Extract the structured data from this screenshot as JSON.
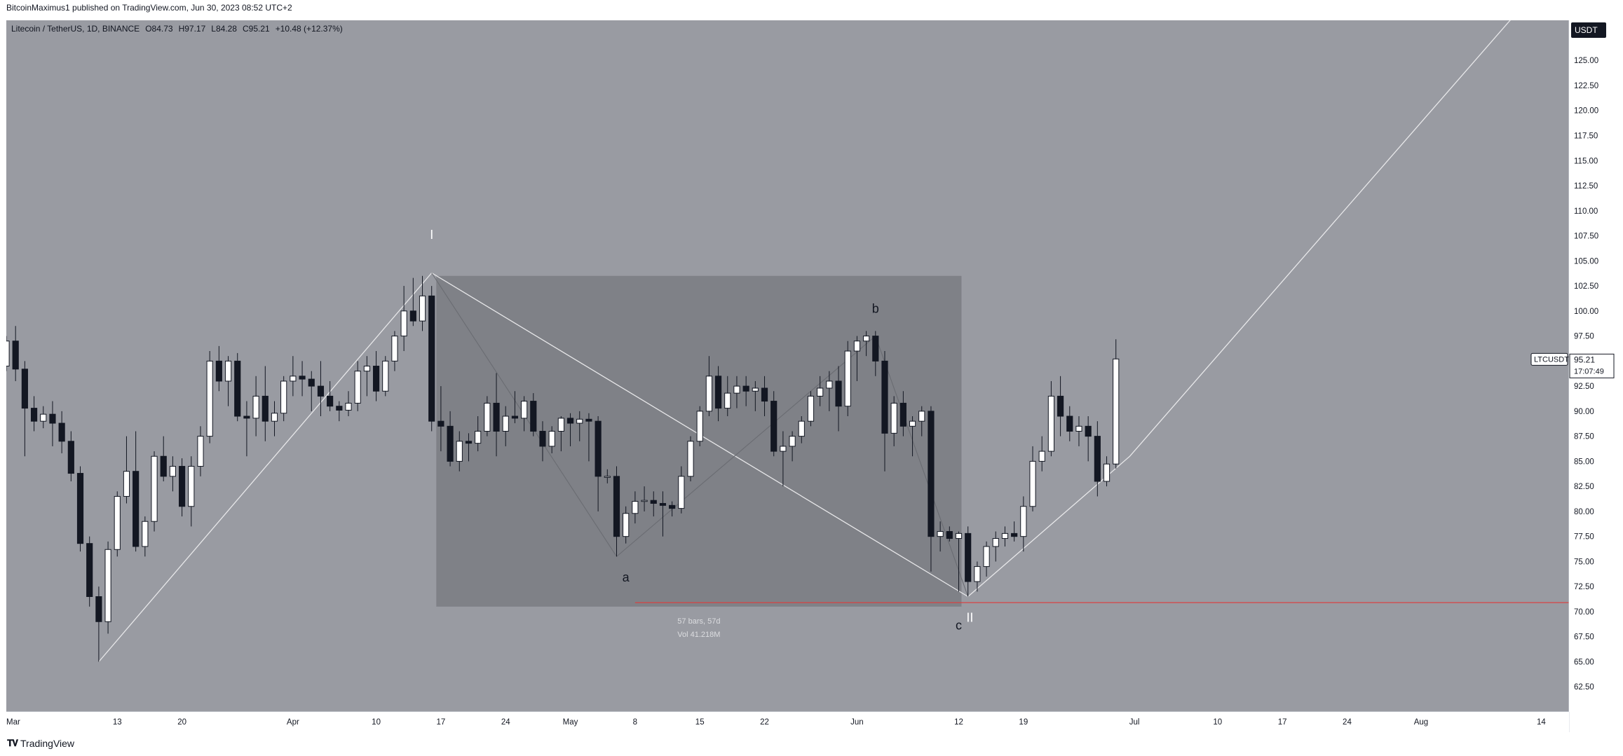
{
  "header": {
    "published_text": "BitcoinMaximus1 published on TradingView.com, Jun 30, 2023 08:52 UTC+2"
  },
  "footer": {
    "brand": "TradingView",
    "logo_icon": "tradingview-logo-icon"
  },
  "colors": {
    "background": "#999ba2",
    "rect_fill": "#7f8187",
    "bull_candle": "#ffffff",
    "bear_candle": "#131722",
    "support_line": "#e03a3a",
    "trend_line": "#e8e8ea"
  },
  "chart_data": {
    "type": "candlestick",
    "symbol_info": {
      "name": "Litecoin / TetherUS, 1D, BINANCE",
      "o_label": "O",
      "o": "84.73",
      "h_label": "H",
      "h": "97.17",
      "l_label": "L",
      "l": "84.28",
      "c_label": "C",
      "c": "95.21",
      "change": "+10.48 (+12.37%)"
    },
    "currency": "USDT",
    "price_badge": {
      "ticker": "LTCUSDT",
      "price": "95.21",
      "countdown": "17:07:49"
    },
    "ylim": [
      60.0,
      129.0
    ],
    "y_ticks": [
      "62.50",
      "65.00",
      "67.50",
      "70.00",
      "72.50",
      "75.00",
      "77.50",
      "80.00",
      "82.50",
      "85.00",
      "87.50",
      "90.00",
      "92.50",
      "95.00",
      "97.50",
      "100.00",
      "102.50",
      "105.00",
      "107.50",
      "110.00",
      "112.50",
      "115.00",
      "117.50",
      "120.00",
      "122.50",
      "125.00"
    ],
    "x_ticks": [
      {
        "label": "Mar",
        "day": 0
      },
      {
        "label": "13",
        "day": 12
      },
      {
        "label": "20",
        "day": 19
      },
      {
        "label": "Apr",
        "day": 31
      },
      {
        "label": "10",
        "day": 40
      },
      {
        "label": "17",
        "day": 47
      },
      {
        "label": "24",
        "day": 54
      },
      {
        "label": "May",
        "day": 61
      },
      {
        "label": "8",
        "day": 68
      },
      {
        "label": "15",
        "day": 75
      },
      {
        "label": "22",
        "day": 82
      },
      {
        "label": "Jun",
        "day": 92
      },
      {
        "label": "12",
        "day": 103
      },
      {
        "label": "19",
        "day": 110
      },
      {
        "label": "Jul",
        "day": 122
      },
      {
        "label": "10",
        "day": 131
      },
      {
        "label": "17",
        "day": 138
      },
      {
        "label": "24",
        "day": 145
      },
      {
        "label": "Aug",
        "day": 153
      },
      {
        "label": "14",
        "day": 166
      }
    ],
    "xlim_days": [
      0,
      169
    ],
    "candles": [
      [
        0,
        94.5,
        97.5,
        94.0,
        97.0
      ],
      [
        1,
        97.0,
        98.5,
        93.0,
        94.2
      ],
      [
        2,
        94.2,
        95.0,
        85.5,
        90.3
      ],
      [
        3,
        90.3,
        91.5,
        88.0,
        89.0
      ],
      [
        4,
        89.0,
        90.5,
        88.3,
        89.7
      ],
      [
        5,
        89.7,
        91.0,
        86.5,
        88.8
      ],
      [
        6,
        88.8,
        90.0,
        85.8,
        87.0
      ],
      [
        7,
        87.0,
        88.0,
        83.0,
        83.8
      ],
      [
        8,
        83.8,
        84.5,
        76.0,
        76.8
      ],
      [
        9,
        76.8,
        77.5,
        70.5,
        71.5
      ],
      [
        10,
        71.5,
        72.5,
        65.0,
        69.0
      ],
      [
        11,
        69.0,
        77.0,
        67.8,
        76.2
      ],
      [
        12,
        76.2,
        82.0,
        75.5,
        81.5
      ],
      [
        13,
        81.5,
        87.5,
        80.8,
        84.0
      ],
      [
        14,
        84.0,
        88.0,
        76.0,
        76.5
      ],
      [
        15,
        76.5,
        79.5,
        75.5,
        79.0
      ],
      [
        16,
        79.0,
        86.0,
        78.0,
        85.5
      ],
      [
        17,
        85.5,
        87.5,
        83.0,
        83.5
      ],
      [
        18,
        83.5,
        85.5,
        82.0,
        84.5
      ],
      [
        19,
        84.5,
        85.3,
        79.5,
        80.5
      ],
      [
        20,
        80.5,
        85.5,
        78.5,
        84.5
      ],
      [
        21,
        84.5,
        88.5,
        83.5,
        87.5
      ],
      [
        22,
        87.5,
        96.0,
        86.8,
        95.0
      ],
      [
        23,
        95.0,
        96.5,
        92.0,
        93.0
      ],
      [
        24,
        93.0,
        95.5,
        90.5,
        95.0
      ],
      [
        25,
        95.0,
        95.8,
        89.0,
        89.5
      ],
      [
        26,
        89.5,
        91.0,
        85.5,
        89.3
      ],
      [
        27,
        89.3,
        93.5,
        87.5,
        91.5
      ],
      [
        28,
        91.5,
        94.5,
        87.0,
        89.0
      ],
      [
        29,
        89.0,
        91.0,
        87.5,
        89.8
      ],
      [
        30,
        89.8,
        93.5,
        89.0,
        93.0
      ],
      [
        31,
        93.0,
        95.5,
        91.5,
        93.5
      ],
      [
        32,
        93.5,
        95.0,
        91.5,
        93.2
      ],
      [
        33,
        93.2,
        94.0,
        90.0,
        92.5
      ],
      [
        34,
        92.5,
        95.0,
        89.5,
        91.5
      ],
      [
        35,
        91.5,
        93.0,
        90.0,
        90.5
      ],
      [
        36,
        90.5,
        91.0,
        89.0,
        90.1
      ],
      [
        37,
        90.1,
        92.0,
        89.5,
        90.8
      ],
      [
        38,
        90.8,
        95.0,
        90.0,
        94.0
      ],
      [
        39,
        94.0,
        95.5,
        91.5,
        94.5
      ],
      [
        40,
        94.5,
        96.0,
        91.0,
        92.0
      ],
      [
        41,
        92.0,
        95.5,
        91.5,
        95.0
      ],
      [
        42,
        95.0,
        98.0,
        94.0,
        97.5
      ],
      [
        43,
        97.5,
        102.5,
        96.0,
        100.0
      ],
      [
        44,
        100.0,
        103.3,
        98.5,
        99.0
      ],
      [
        45,
        99.0,
        103.5,
        98.0,
        101.5
      ],
      [
        46,
        101.5,
        102.5,
        88.0,
        89.0
      ],
      [
        47,
        89.0,
        92.5,
        86.0,
        88.5
      ],
      [
        48,
        88.5,
        90.0,
        84.5,
        85.0
      ],
      [
        49,
        85.0,
        88.0,
        84.0,
        87.0
      ],
      [
        50,
        87.0,
        87.8,
        85.0,
        86.8
      ],
      [
        51,
        86.8,
        89.5,
        86.0,
        88.0
      ],
      [
        52,
        88.0,
        91.5,
        87.5,
        90.8
      ],
      [
        53,
        90.8,
        93.8,
        85.5,
        88.0
      ],
      [
        54,
        88.0,
        90.5,
        86.5,
        89.5
      ],
      [
        55,
        89.5,
        92.0,
        88.8,
        89.3
      ],
      [
        56,
        89.3,
        91.5,
        88.0,
        91.0
      ],
      [
        57,
        91.0,
        91.8,
        87.5,
        88.0
      ],
      [
        58,
        88.0,
        89.0,
        85.0,
        86.5
      ],
      [
        59,
        86.5,
        88.5,
        85.8,
        88.0
      ],
      [
        60,
        88.0,
        89.5,
        86.0,
        89.3
      ],
      [
        61,
        89.3,
        89.8,
        86.5,
        88.8
      ],
      [
        62,
        88.8,
        90.0,
        87.0,
        89.2
      ],
      [
        63,
        89.2,
        89.8,
        85.0,
        89.0
      ],
      [
        64,
        89.0,
        89.5,
        80.0,
        83.5
      ],
      [
        65,
        83.5,
        84.2,
        82.8,
        83.5
      ],
      [
        66,
        83.5,
        84.5,
        75.5,
        77.5
      ],
      [
        67,
        77.5,
        80.5,
        76.8,
        79.8
      ],
      [
        68,
        79.8,
        82.0,
        78.8,
        81.0
      ],
      [
        69,
        81.0,
        82.5,
        80.0,
        81.1
      ],
      [
        70,
        81.1,
        82.0,
        79.5,
        80.8
      ],
      [
        71,
        80.8,
        82.0,
        77.5,
        80.6
      ],
      [
        72,
        80.6,
        81.0,
        79.5,
        80.3
      ],
      [
        73,
        80.3,
        84.5,
        79.8,
        83.5
      ],
      [
        74,
        83.5,
        87.5,
        83.0,
        87.0
      ],
      [
        75,
        87.0,
        90.5,
        86.5,
        90.0
      ],
      [
        76,
        90.0,
        95.5,
        89.5,
        93.5
      ],
      [
        77,
        93.5,
        94.5,
        89.0,
        90.3
      ],
      [
        78,
        90.3,
        93.5,
        89.5,
        91.8
      ],
      [
        79,
        91.8,
        93.5,
        90.3,
        92.5
      ],
      [
        80,
        92.5,
        93.5,
        90.5,
        92.0
      ],
      [
        81,
        92.0,
        93.0,
        90.0,
        92.3
      ],
      [
        82,
        92.3,
        93.5,
        89.5,
        91.0
      ],
      [
        83,
        91.0,
        92.0,
        85.5,
        86.0
      ],
      [
        84,
        86.0,
        88.0,
        82.5,
        86.5
      ],
      [
        85,
        86.5,
        88.0,
        85.0,
        87.5
      ],
      [
        86,
        87.5,
        89.5,
        86.8,
        89.0
      ],
      [
        87,
        89.0,
        92.0,
        88.5,
        91.5
      ],
      [
        88,
        91.5,
        93.5,
        90.5,
        92.3
      ],
      [
        89,
        92.3,
        94.0,
        90.0,
        93.0
      ],
      [
        90,
        93.0,
        94.5,
        88.0,
        90.5
      ],
      [
        91,
        90.5,
        97.0,
        89.5,
        96.0
      ],
      [
        92,
        96.0,
        97.5,
        93.0,
        97.0
      ],
      [
        93,
        97.0,
        98.0,
        95.5,
        97.5
      ],
      [
        94,
        97.5,
        98.0,
        93.5,
        95.0
      ],
      [
        95,
        95.0,
        96.0,
        84.0,
        87.8
      ],
      [
        96,
        87.8,
        91.5,
        86.5,
        90.8
      ],
      [
        97,
        90.8,
        92.0,
        87.5,
        88.5
      ],
      [
        98,
        88.5,
        89.5,
        85.5,
        89.0
      ],
      [
        99,
        89.0,
        90.5,
        87.5,
        90.0
      ],
      [
        100,
        90.0,
        90.5,
        74.0,
        77.5
      ],
      [
        101,
        77.5,
        79.0,
        76.0,
        78.0
      ],
      [
        102,
        78.0,
        78.5,
        77.0,
        77.3
      ],
      [
        103,
        77.3,
        78.0,
        72.0,
        77.8
      ],
      [
        104,
        77.8,
        78.5,
        71.5,
        73.0
      ],
      [
        105,
        73.0,
        75.0,
        72.0,
        74.5
      ],
      [
        106,
        74.5,
        77.0,
        73.5,
        76.5
      ],
      [
        107,
        76.5,
        78.0,
        75.0,
        77.3
      ],
      [
        108,
        77.3,
        78.5,
        76.5,
        77.8
      ],
      [
        109,
        77.8,
        79.0,
        77.0,
        77.5
      ],
      [
        110,
        77.5,
        81.5,
        76.0,
        80.5
      ],
      [
        111,
        80.5,
        86.5,
        80.0,
        85.0
      ],
      [
        112,
        85.0,
        87.5,
        84.0,
        86.0
      ],
      [
        113,
        86.0,
        93.0,
        85.5,
        91.5
      ],
      [
        114,
        91.5,
        93.5,
        87.5,
        89.5
      ],
      [
        115,
        89.5,
        90.5,
        87.0,
        88.0
      ],
      [
        116,
        88.0,
        89.5,
        86.5,
        88.5
      ],
      [
        117,
        88.5,
        89.5,
        85.0,
        87.5
      ],
      [
        118,
        87.5,
        89.0,
        81.5,
        83.0
      ],
      [
        119,
        83.0,
        85.5,
        82.5,
        84.73
      ],
      [
        120,
        84.73,
        97.17,
        84.28,
        95.21
      ]
    ],
    "annotations": [
      {
        "text": "I",
        "day": 46,
        "price": 107.2,
        "size": 18
      },
      {
        "text": "b",
        "day": 94,
        "price": 99.8,
        "size": 18
      },
      {
        "text": "a",
        "day": 67,
        "price": 73.0,
        "size": 18
      },
      {
        "text": "c",
        "day": 103,
        "price": 68.2,
        "size": 18
      },
      {
        "text": "II",
        "day": 104.2,
        "price": 69.0,
        "size": 18
      }
    ],
    "wave_lines": [
      {
        "name": "wave-one-line",
        "points": [
          [
            10,
            65.0
          ],
          [
            46,
            103.8
          ]
        ]
      },
      {
        "name": "wave-two-line",
        "points": [
          [
            46,
            103.8
          ],
          [
            104,
            71.5
          ],
          [
            121.5,
            85.5
          ],
          [
            165,
            131.5
          ]
        ]
      },
      {
        "name": "abc-correction-line",
        "points": [
          [
            46,
            103.8
          ],
          [
            66,
            75.5
          ],
          [
            94,
            97.5
          ],
          [
            104,
            71.5
          ]
        ]
      }
    ],
    "range_box": {
      "day_start": 46.5,
      "day_end": 103.3,
      "price_top": 103.5,
      "price_bottom": 70.5,
      "label_bars": "57 bars, 57d",
      "label_vol": "Vol 41.218M"
    },
    "support_level": {
      "price": 70.9,
      "day_start": 68
    }
  }
}
